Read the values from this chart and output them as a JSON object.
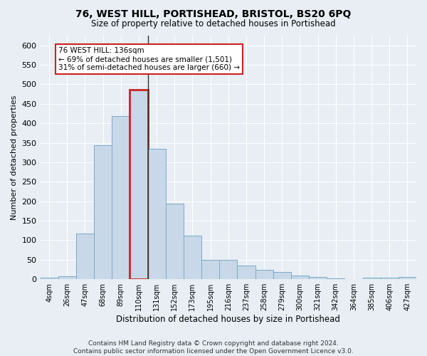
{
  "title": "76, WEST HILL, PORTISHEAD, BRISTOL, BS20 6PQ",
  "subtitle": "Size of property relative to detached houses in Portishead",
  "xlabel": "Distribution of detached houses by size in Portishead",
  "ylabel": "Number of detached properties",
  "bar_color": "#c8d8e8",
  "bar_edge_color": "#7aaac8",
  "highlight_bar_index": 5,
  "highlight_bar_edge_color": "#cc2222",
  "vline_color": "#333333",
  "categories": [
    "4sqm",
    "26sqm",
    "47sqm",
    "68sqm",
    "89sqm",
    "110sqm",
    "131sqm",
    "152sqm",
    "173sqm",
    "195sqm",
    "216sqm",
    "237sqm",
    "258sqm",
    "279sqm",
    "300sqm",
    "321sqm",
    "342sqm",
    "364sqm",
    "385sqm",
    "406sqm",
    "427sqm"
  ],
  "values": [
    4,
    7,
    118,
    344,
    418,
    487,
    335,
    194,
    112,
    50,
    50,
    35,
    25,
    18,
    10,
    5,
    3,
    1,
    4,
    4,
    5
  ],
  "ylim": [
    0,
    625
  ],
  "yticks": [
    0,
    50,
    100,
    150,
    200,
    250,
    300,
    350,
    400,
    450,
    500,
    550,
    600
  ],
  "annotation_text": "76 WEST HILL: 136sqm\n← 69% of detached houses are smaller (1,501)\n31% of semi-detached houses are larger (660) →",
  "annotation_box_color": "#ffffff",
  "annotation_box_edge_color": "#cc2222",
  "footer_line1": "Contains HM Land Registry data © Crown copyright and database right 2024.",
  "footer_line2": "Contains public sector information licensed under the Open Government Licence v3.0.",
  "background_color": "#e8eef4",
  "grid_color": "#ffffff",
  "vline_x_index": 5
}
